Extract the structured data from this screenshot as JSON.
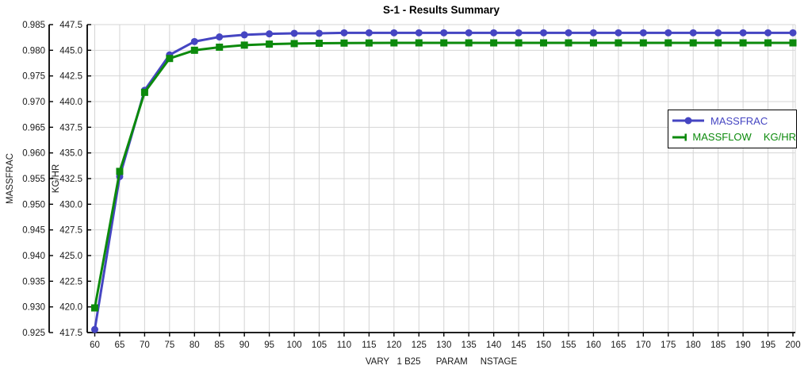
{
  "chart_data": {
    "type": "line",
    "title": "S-1 - Results Summary",
    "xlabel": "VARY   1 B25      PARAM     NSTAGE",
    "grid": true,
    "legend_position": "right",
    "colors": {
      "grid": "#d4d4d4",
      "axis": "#000000",
      "background": "#ffffff",
      "massfrac_series": "#4545c2",
      "massflow_series": "#0c8a0c"
    },
    "axes": {
      "massfrac": {
        "label": "MASSFRAC",
        "min": 0.925,
        "max": 0.985,
        "step": 0.005,
        "tick_labels": [
          "0.925",
          "0.930",
          "0.935",
          "0.940",
          "0.945",
          "0.950",
          "0.955",
          "0.960",
          "0.965",
          "0.970",
          "0.975",
          "0.980",
          "0.985"
        ]
      },
      "kghr": {
        "label": "KG/HR",
        "min": 417.5,
        "max": 447.5,
        "step": 2.5,
        "tick_labels": [
          "417.5",
          "420.0",
          "422.5",
          "425.0",
          "427.5",
          "430.0",
          "432.5",
          "435.0",
          "437.5",
          "440.0",
          "442.5",
          "445.0",
          "447.5"
        ]
      },
      "x": {
        "min": 60,
        "max": 200,
        "step": 5,
        "tick_labels": [
          "60",
          "65",
          "70",
          "75",
          "80",
          "85",
          "90",
          "95",
          "100",
          "105",
          "110",
          "115",
          "120",
          "125",
          "130",
          "135",
          "140",
          "145",
          "150",
          "155",
          "160",
          "165",
          "170",
          "175",
          "180",
          "185",
          "190",
          "195",
          "200"
        ]
      }
    },
    "x": [
      60,
      65,
      70,
      75,
      80,
      85,
      90,
      95,
      100,
      105,
      110,
      115,
      120,
      125,
      130,
      135,
      140,
      145,
      150,
      155,
      160,
      165,
      170,
      175,
      180,
      185,
      190,
      195,
      200
    ],
    "series": [
      {
        "name": "MASSFRAC",
        "units": "",
        "axis": "massfrac",
        "color": "#4545c2",
        "marker": "circle",
        "values": [
          0.9256,
          0.9554,
          0.9722,
          0.9791,
          0.9817,
          0.9826,
          0.983,
          0.9832,
          0.9833,
          0.9833,
          0.9834,
          0.9834,
          0.9834,
          0.9834,
          0.9834,
          0.9834,
          0.9834,
          0.9834,
          0.9834,
          0.9834,
          0.9834,
          0.9834,
          0.9834,
          0.9834,
          0.9834,
          0.9834,
          0.9834,
          0.9834,
          0.9834
        ]
      },
      {
        "name": "MASSFLOW",
        "units": "KG/HR",
        "axis": "kghr",
        "color": "#0c8a0c",
        "marker": "square",
        "values": [
          419.9,
          433.2,
          440.9,
          444.2,
          445.0,
          445.3,
          445.5,
          445.6,
          445.65,
          445.68,
          445.7,
          445.71,
          445.72,
          445.72,
          445.72,
          445.72,
          445.72,
          445.72,
          445.72,
          445.72,
          445.72,
          445.72,
          445.72,
          445.72,
          445.72,
          445.72,
          445.72,
          445.72,
          445.72
        ]
      }
    ]
  }
}
